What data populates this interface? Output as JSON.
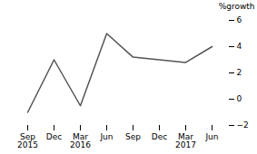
{
  "chart_data": {
    "type": "line",
    "ylabel": "%growth",
    "categories": [
      "Sep\n2015",
      "Dec",
      "Mar\n2016",
      "Jun",
      "Sep",
      "Dec",
      "Mar\n2017",
      "Jun"
    ],
    "values": [
      -1.0,
      3.0,
      -0.5,
      5.0,
      3.2,
      3.0,
      2.8,
      4.0
    ],
    "color": "#555555",
    "ylim": [
      -2,
      6
    ],
    "yticks": [
      -2,
      0,
      2,
      4,
      6
    ]
  }
}
